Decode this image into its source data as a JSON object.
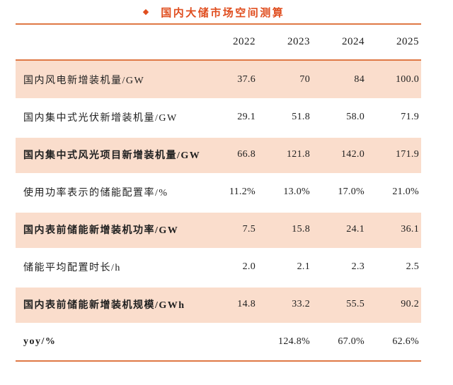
{
  "title": {
    "bullet": "◆",
    "text": "国内大储市场空间测算"
  },
  "colors": {
    "accent": "#e04e1f",
    "rule": "#df7845",
    "row_shade": "#faddcc",
    "text": "#1f1f1f"
  },
  "chart_data": {
    "type": "table",
    "title": "国内大储市场空间测算",
    "categories": [
      "2022",
      "2023",
      "2024",
      "2025"
    ],
    "rows": [
      {
        "label": "国内风电新增装机量/GW",
        "values": [
          "37.6",
          "70",
          "84",
          "100.0"
        ],
        "shaded": true,
        "bold": false
      },
      {
        "label": "国内集中式光伏新增装机量/GW",
        "values": [
          "29.1",
          "51.8",
          "58.0",
          "71.9"
        ],
        "shaded": false,
        "bold": false
      },
      {
        "label": "国内集中式风光项目新增装机量/GW",
        "values": [
          "66.8",
          "121.8",
          "142.0",
          "171.9"
        ],
        "shaded": true,
        "bold": true
      },
      {
        "label": "使用功率表示的储能配置率/%",
        "values": [
          "11.2%",
          "13.0%",
          "17.0%",
          "21.0%"
        ],
        "shaded": false,
        "bold": false
      },
      {
        "label": "国内表前储能新增装机功率/GW",
        "values": [
          "7.5",
          "15.8",
          "24.1",
          "36.1"
        ],
        "shaded": true,
        "bold": true
      },
      {
        "label": "储能平均配置时长/h",
        "values": [
          "2.0",
          "2.1",
          "2.3",
          "2.5"
        ],
        "shaded": false,
        "bold": false
      },
      {
        "label": "国内表前储能新增装机规模/GWh",
        "values": [
          "14.8",
          "33.2",
          "55.5",
          "90.2"
        ],
        "shaded": true,
        "bold": true
      },
      {
        "label": "yoy/%",
        "values": [
          "",
          "124.8%",
          "67.0%",
          "62.6%"
        ],
        "shaded": false,
        "bold": true
      }
    ],
    "layout": {
      "value_alignment": "right",
      "shaded_row_color": "#faddcc",
      "rule_color": "#df7845"
    }
  }
}
